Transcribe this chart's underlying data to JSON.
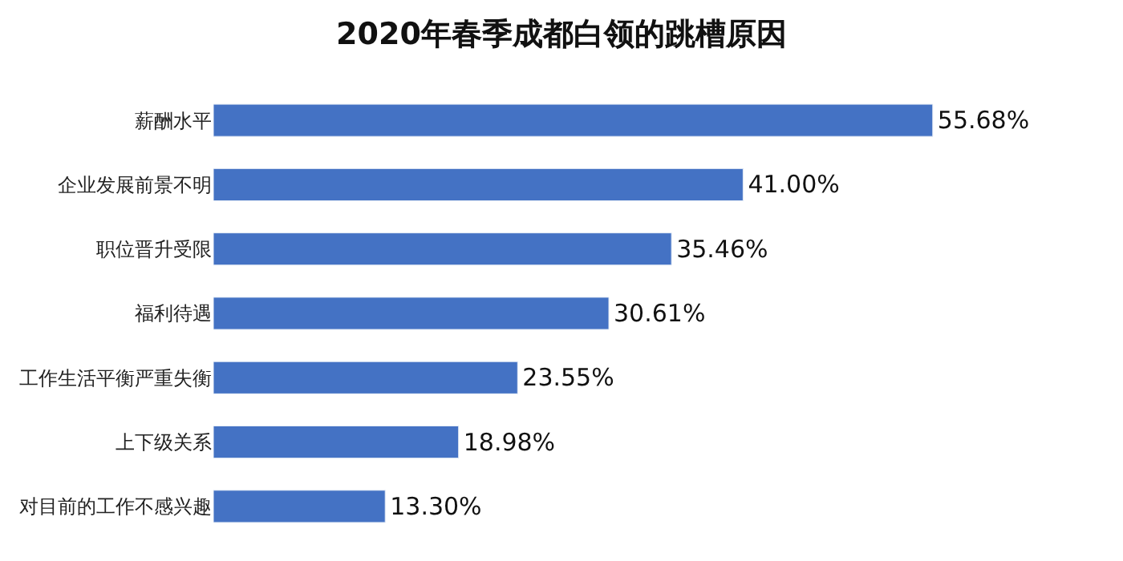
{
  "chart_data": {
    "type": "bar",
    "title": "2020年春季成都白领的跳槽原因",
    "orientation": "horizontal",
    "categories": [
      "薪酬水平",
      "企业发展前景不明",
      "职位晋升受限",
      "福利待遇",
      "工作生活平衡严重失衡",
      "上下级关系",
      "对目前的工作不感兴趣"
    ],
    "values": [
      55.68,
      41.0,
      35.46,
      30.61,
      23.55,
      18.98,
      13.3
    ],
    "value_labels": [
      "55.68%",
      "41.00%",
      "35.46%",
      "30.61%",
      "23.55%",
      "18.98%",
      "13.30%"
    ],
    "color": "#4472c4"
  }
}
